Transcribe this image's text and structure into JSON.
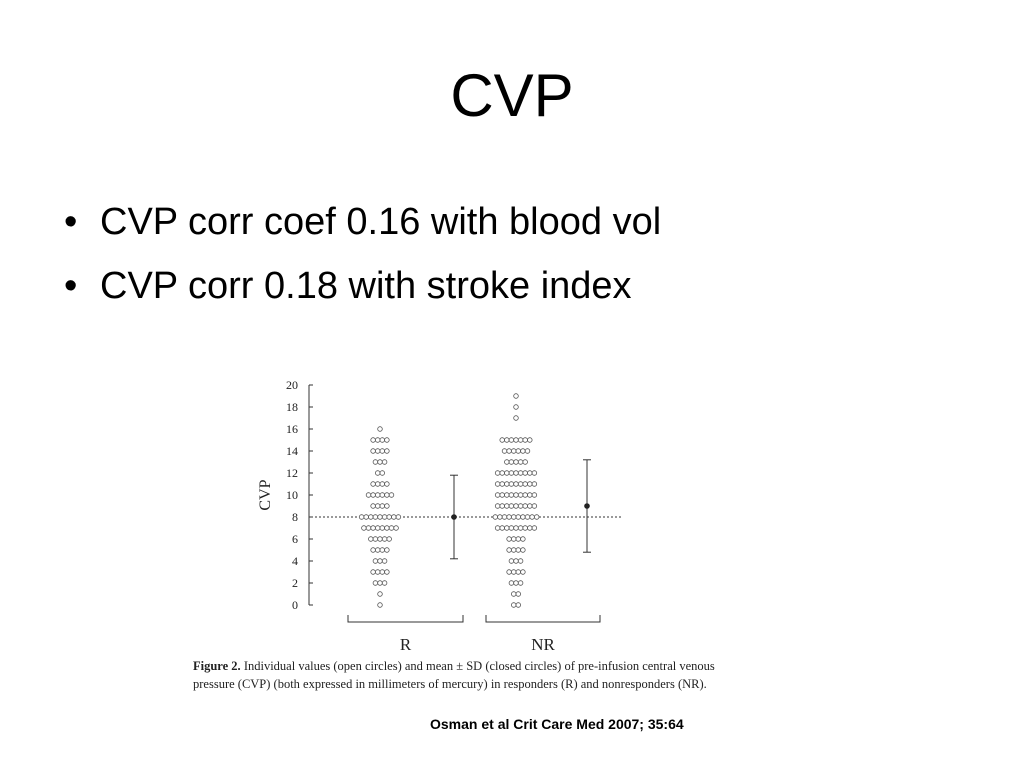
{
  "slide": {
    "title": "CVP",
    "bullets": [
      "CVP corr coef 0.16 with blood vol",
      "CVP corr 0.18 with stroke index"
    ],
    "citation": "Osman et al Crit Care Med 2007; 35:64"
  },
  "figure": {
    "caption_label": "Figure 2.",
    "caption_text": "Individual values (open circles) and mean ± SD (closed circles) of pre-infusion central venous pressure (CVP) (both expressed in millimeters of mercury) in responders (R) and nonresponders (NR)."
  },
  "chart_data": {
    "type": "scatter",
    "ylabel": "CVP",
    "ylim": [
      0,
      20
    ],
    "yticks": [
      0,
      2,
      4,
      6,
      8,
      10,
      12,
      14,
      16,
      18,
      20
    ],
    "categories": [
      "R",
      "NR"
    ],
    "reference_line": 8,
    "series": [
      {
        "name": "R",
        "points": {
          "0": 1,
          "1": 1,
          "2": 3,
          "3": 4,
          "4": 3,
          "5": 4,
          "6": 5,
          "7": 8,
          "8": 9,
          "9": 4,
          "10": 6,
          "11": 4,
          "12": 2,
          "13": 3,
          "14": 4,
          "15": 4,
          "16": 1
        },
        "mean": 8.0,
        "sd_low": 4.2,
        "sd_high": 11.8
      },
      {
        "name": "NR",
        "points": {
          "0": 2,
          "1": 2,
          "2": 3,
          "3": 4,
          "4": 3,
          "5": 4,
          "6": 4,
          "7": 9,
          "8": 10,
          "9": 9,
          "10": 9,
          "11": 9,
          "12": 9,
          "13": 5,
          "14": 6,
          "15": 7,
          "17": 1,
          "18": 1,
          "19": 1
        },
        "mean": 9.0,
        "sd_low": 4.8,
        "sd_high": 13.2
      }
    ]
  }
}
